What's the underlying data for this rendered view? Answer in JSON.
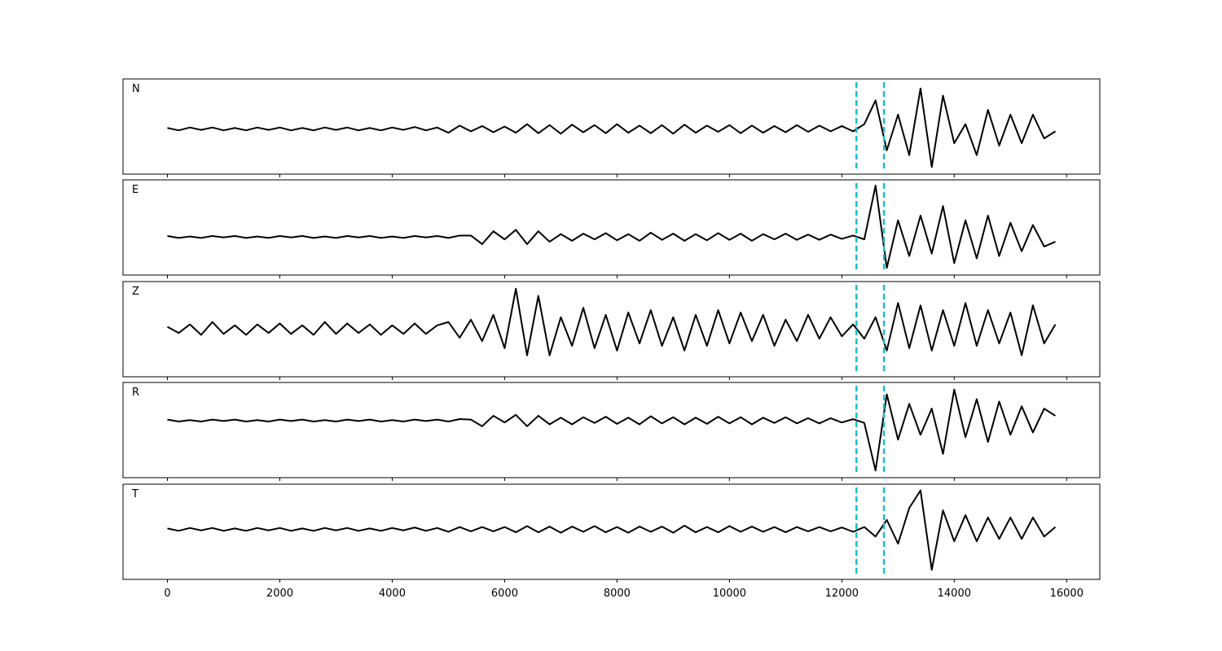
{
  "chart_data": [
    {
      "type": "line",
      "label": "N",
      "color": "#000000",
      "vline_color": "#17becf",
      "vlines": [
        12260,
        12750
      ],
      "xlim": [
        -790,
        16590
      ],
      "ylim": [
        -0.95,
        1.05
      ],
      "xticks": [
        0,
        2000,
        4000,
        6000,
        8000,
        10000,
        12000,
        14000,
        16000
      ],
      "x": [
        0,
        200,
        400,
        600,
        800,
        1000,
        1200,
        1400,
        1600,
        1800,
        2000,
        2200,
        2400,
        2600,
        2800,
        3000,
        3200,
        3400,
        3600,
        3800,
        4000,
        4200,
        4400,
        4600,
        4800,
        5000,
        5200,
        5400,
        5600,
        5800,
        6000,
        6200,
        6400,
        6600,
        6800,
        7000,
        7200,
        7400,
        7600,
        7800,
        8000,
        8200,
        8400,
        8600,
        8800,
        9000,
        9200,
        9400,
        9600,
        9800,
        10000,
        10200,
        10400,
        10600,
        10800,
        11000,
        11200,
        11400,
        11600,
        11800,
        12000,
        12200,
        12400,
        12600,
        12800,
        13000,
        13200,
        13400,
        13600,
        13800,
        14000,
        14200,
        14400,
        14600,
        14800,
        15000,
        15200,
        15400,
        15600,
        15800
      ],
      "values": [
        0.02,
        -0.03,
        0.03,
        -0.02,
        0.03,
        -0.03,
        0.02,
        -0.03,
        0.03,
        -0.02,
        0.03,
        -0.03,
        0.02,
        -0.03,
        0.03,
        -0.02,
        0.03,
        -0.03,
        0.02,
        -0.03,
        0.03,
        -0.02,
        0.04,
        -0.03,
        0.03,
        -0.08,
        0.07,
        -0.05,
        0.06,
        -0.07,
        0.05,
        -0.08,
        0.1,
        -0.09,
        0.08,
        -0.1,
        0.09,
        -0.07,
        0.08,
        -0.09,
        0.1,
        -0.08,
        0.07,
        -0.09,
        0.08,
        -0.1,
        0.09,
        -0.08,
        0.07,
        -0.06,
        0.08,
        -0.09,
        0.07,
        -0.08,
        0.06,
        -0.07,
        0.08,
        -0.06,
        0.07,
        -0.05,
        0.06,
        -0.05,
        0.1,
        0.6,
        -0.45,
        0.3,
        -0.55,
        0.85,
        -0.8,
        0.7,
        -0.3,
        0.1,
        -0.55,
        0.4,
        -0.35,
        0.3,
        -0.3,
        0.3,
        -0.2,
        -0.05
      ]
    },
    {
      "type": "line",
      "label": "E",
      "color": "#000000",
      "vline_color": "#17becf",
      "vlines": [
        12260,
        12750
      ],
      "xlim": [
        -790,
        16590
      ],
      "ylim": [
        -0.8,
        1.2
      ],
      "xticks": [
        0,
        2000,
        4000,
        6000,
        8000,
        10000,
        12000,
        14000,
        16000
      ],
      "x": [
        0,
        200,
        400,
        600,
        800,
        1000,
        1200,
        1400,
        1600,
        1800,
        2000,
        2200,
        2400,
        2600,
        2800,
        3000,
        3200,
        3400,
        3600,
        3800,
        4000,
        4200,
        4400,
        4600,
        4800,
        5000,
        5200,
        5400,
        5600,
        5800,
        6000,
        6200,
        6400,
        6600,
        6800,
        7000,
        7200,
        7400,
        7600,
        7800,
        8000,
        8200,
        8400,
        8600,
        8800,
        9000,
        9200,
        9400,
        9600,
        9800,
        10000,
        10200,
        10400,
        10600,
        10800,
        11000,
        11200,
        11400,
        11600,
        11800,
        12000,
        12200,
        12400,
        12600,
        12800,
        13000,
        13200,
        13400,
        13600,
        13800,
        14000,
        14200,
        14400,
        14600,
        14800,
        15000,
        15200,
        15400,
        15600,
        15800
      ],
      "values": [
        0.02,
        -0.02,
        0.01,
        -0.02,
        0.02,
        -0.01,
        0.02,
        -0.02,
        0.01,
        -0.02,
        0.02,
        -0.01,
        0.02,
        -0.02,
        0.01,
        -0.02,
        0.02,
        -0.01,
        0.02,
        -0.02,
        0.01,
        -0.02,
        0.02,
        -0.01,
        0.02,
        -0.02,
        0.03,
        0.03,
        -0.15,
        0.12,
        -0.05,
        0.15,
        -0.15,
        0.12,
        -0.1,
        0.06,
        -0.08,
        0.07,
        -0.05,
        0.08,
        -0.07,
        0.06,
        -0.08,
        0.09,
        -0.06,
        0.07,
        -0.08,
        0.06,
        -0.07,
        0.08,
        -0.06,
        0.07,
        -0.08,
        0.06,
        -0.05,
        0.07,
        -0.06,
        0.05,
        -0.06,
        0.05,
        -0.04,
        0.03,
        -0.05,
        1.08,
        -0.65,
        0.35,
        -0.4,
        0.45,
        -0.35,
        0.65,
        -0.55,
        0.35,
        -0.45,
        0.45,
        -0.4,
        0.3,
        -0.3,
        0.25,
        -0.2,
        -0.1
      ]
    },
    {
      "type": "line",
      "label": "Z",
      "color": "#000000",
      "vline_color": "#17becf",
      "vlines": [
        12260,
        12750
      ],
      "xlim": [
        -790,
        16590
      ],
      "ylim": [
        -1,
        1
      ],
      "xticks": [
        0,
        2000,
        4000,
        6000,
        8000,
        10000,
        12000,
        14000,
        16000
      ],
      "x": [
        0,
        200,
        400,
        600,
        800,
        1000,
        1200,
        1400,
        1600,
        1800,
        2000,
        2200,
        2400,
        2600,
        2800,
        3000,
        3200,
        3400,
        3600,
        3800,
        4000,
        4200,
        4400,
        4600,
        4800,
        5000,
        5200,
        5400,
        5600,
        5800,
        6000,
        6200,
        6400,
        6600,
        6800,
        7000,
        7200,
        7400,
        7600,
        7800,
        8000,
        8200,
        8400,
        8600,
        8800,
        9000,
        9200,
        9400,
        9600,
        9800,
        10000,
        10200,
        10400,
        10600,
        10800,
        11000,
        11200,
        11400,
        11600,
        11800,
        12000,
        12200,
        12400,
        12600,
        12800,
        13000,
        13200,
        13400,
        13600,
        13800,
        14000,
        14200,
        14400,
        14600,
        14800,
        15000,
        15200,
        15400,
        15600,
        15800
      ],
      "values": [
        0.05,
        -0.08,
        0.1,
        -0.12,
        0.15,
        -0.1,
        0.08,
        -0.12,
        0.1,
        -0.08,
        0.12,
        -0.1,
        0.08,
        -0.12,
        0.15,
        -0.1,
        0.12,
        -0.08,
        0.1,
        -0.12,
        0.08,
        -0.1,
        0.12,
        -0.1,
        0.08,
        0.15,
        -0.18,
        0.2,
        -0.25,
        0.3,
        -0.4,
        0.85,
        -0.55,
        0.7,
        -0.55,
        0.25,
        -0.35,
        0.45,
        -0.4,
        0.3,
        -0.45,
        0.35,
        -0.3,
        0.4,
        -0.35,
        0.25,
        -0.45,
        0.3,
        -0.35,
        0.4,
        -0.3,
        0.35,
        -0.25,
        0.3,
        -0.35,
        0.2,
        -0.25,
        0.3,
        -0.2,
        0.25,
        -0.15,
        0.1,
        -0.2,
        0.25,
        -0.45,
        0.55,
        -0.4,
        0.5,
        -0.45,
        0.4,
        -0.35,
        0.55,
        -0.35,
        0.4,
        -0.3,
        0.35,
        -0.55,
        0.5,
        -0.3,
        0.1
      ]
    },
    {
      "type": "line",
      "label": "R",
      "color": "#000000",
      "vline_color": "#17becf",
      "vlines": [
        12260,
        12750
      ],
      "xlim": [
        -790,
        16590
      ],
      "ylim": [
        -1.2,
        0.8
      ],
      "xticks": [
        0,
        2000,
        4000,
        6000,
        8000,
        10000,
        12000,
        14000,
        16000
      ],
      "x": [
        0,
        200,
        400,
        600,
        800,
        1000,
        1200,
        1400,
        1600,
        1800,
        2000,
        2200,
        2400,
        2600,
        2800,
        3000,
        3200,
        3400,
        3600,
        3800,
        4000,
        4200,
        4400,
        4600,
        4800,
        5000,
        5200,
        5400,
        5600,
        5800,
        6000,
        6200,
        6400,
        6600,
        6800,
        7000,
        7200,
        7400,
        7600,
        7800,
        8000,
        8200,
        8400,
        8600,
        8800,
        9000,
        9200,
        9400,
        9600,
        9800,
        10000,
        10200,
        10400,
        10600,
        10800,
        11000,
        11200,
        11400,
        11600,
        11800,
        12000,
        12200,
        12400,
        12600,
        12800,
        13000,
        13200,
        13400,
        13600,
        13800,
        14000,
        14200,
        14400,
        14600,
        14800,
        15000,
        15200,
        15400,
        15600,
        15800
      ],
      "values": [
        0.02,
        -0.02,
        0.01,
        -0.02,
        0.02,
        -0.01,
        0.02,
        -0.02,
        0.01,
        -0.02,
        0.02,
        -0.01,
        0.02,
        -0.02,
        0.01,
        -0.02,
        0.02,
        -0.01,
        0.02,
        -0.02,
        0.01,
        -0.02,
        0.02,
        -0.01,
        0.02,
        -0.02,
        0.03,
        0.02,
        -0.12,
        0.1,
        -0.04,
        0.12,
        -0.12,
        0.1,
        -0.08,
        0.06,
        -0.08,
        0.07,
        -0.05,
        0.08,
        -0.07,
        0.06,
        -0.08,
        0.09,
        -0.06,
        0.07,
        -0.08,
        0.06,
        -0.07,
        0.08,
        -0.06,
        0.07,
        -0.08,
        0.06,
        -0.05,
        0.07,
        -0.06,
        0.05,
        -0.06,
        0.05,
        -0.04,
        0.03,
        -0.05,
        -1.05,
        0.55,
        -0.4,
        0.35,
        -0.3,
        0.25,
        -0.7,
        0.65,
        -0.35,
        0.45,
        -0.45,
        0.4,
        -0.3,
        0.3,
        -0.25,
        0.25,
        0.1
      ]
    },
    {
      "type": "line",
      "label": "T",
      "color": "#000000",
      "vline_color": "#17becf",
      "vlines": [
        12260,
        12750
      ],
      "xlim": [
        -790,
        16590
      ],
      "ylim": [
        -1.05,
        0.95
      ],
      "xticks": [
        0,
        2000,
        4000,
        6000,
        8000,
        10000,
        12000,
        14000,
        16000
      ],
      "x": [
        0,
        200,
        400,
        600,
        800,
        1000,
        1200,
        1400,
        1600,
        1800,
        2000,
        2200,
        2400,
        2600,
        2800,
        3000,
        3200,
        3400,
        3600,
        3800,
        4000,
        4200,
        4400,
        4600,
        4800,
        5000,
        5200,
        5400,
        5600,
        5800,
        6000,
        6200,
        6400,
        6600,
        6800,
        7000,
        7200,
        7400,
        7600,
        7800,
        8000,
        8200,
        8400,
        8600,
        8800,
        9000,
        9200,
        9400,
        9600,
        9800,
        10000,
        10200,
        10400,
        10600,
        10800,
        11000,
        11200,
        11400,
        11600,
        11800,
        12000,
        12200,
        12400,
        12600,
        12800,
        13000,
        13200,
        13400,
        13600,
        13800,
        14000,
        14200,
        14400,
        14600,
        14800,
        15000,
        15200,
        15400,
        15600,
        15800
      ],
      "values": [
        0.02,
        -0.03,
        0.03,
        -0.02,
        0.03,
        -0.03,
        0.02,
        -0.03,
        0.03,
        -0.02,
        0.03,
        -0.03,
        0.02,
        -0.03,
        0.03,
        -0.02,
        0.03,
        -0.03,
        0.02,
        -0.03,
        0.03,
        -0.02,
        0.04,
        -0.03,
        0.03,
        -0.05,
        0.05,
        -0.04,
        0.05,
        -0.04,
        0.05,
        -0.06,
        0.07,
        -0.06,
        0.06,
        -0.07,
        0.06,
        -0.05,
        0.07,
        -0.06,
        0.05,
        -0.07,
        0.06,
        -0.05,
        0.06,
        -0.07,
        0.08,
        -0.06,
        0.05,
        -0.06,
        0.07,
        -0.05,
        0.06,
        -0.05,
        0.05,
        -0.06,
        0.05,
        -0.04,
        0.05,
        -0.04,
        0.04,
        -0.05,
        0.05,
        -0.15,
        0.2,
        -0.3,
        0.45,
        0.82,
        -0.85,
        0.4,
        -0.25,
        0.3,
        -0.25,
        0.25,
        -0.2,
        0.25,
        -0.2,
        0.25,
        -0.15,
        0.05
      ]
    }
  ]
}
